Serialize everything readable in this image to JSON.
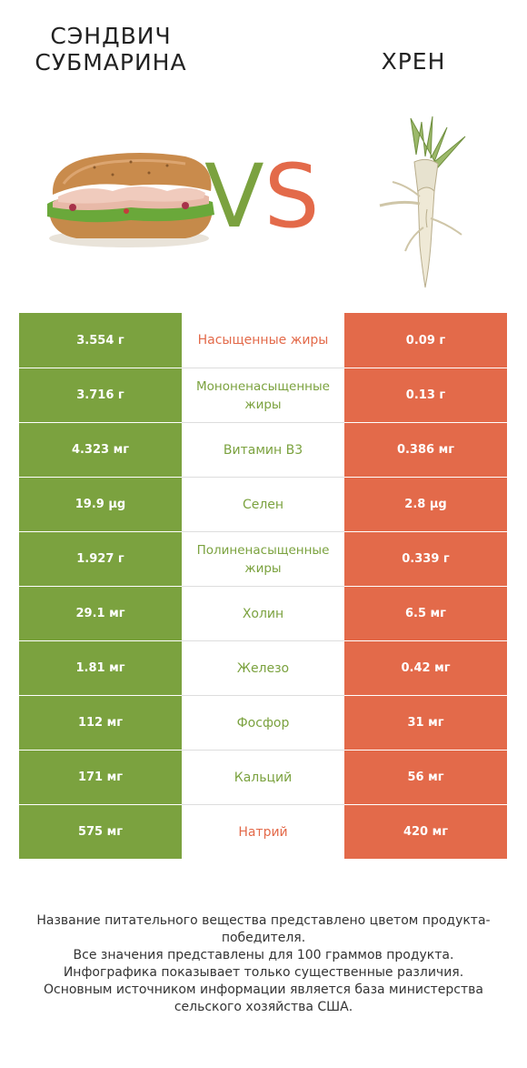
{
  "header": {
    "left_title": "СЭНДВИЧ\nСУБМАРИНА",
    "right_title": "ХРЕН",
    "vs_v": "V",
    "vs_s": "S"
  },
  "colors": {
    "left_winner": "#7ba23f",
    "right_winner": "#e36a4a"
  },
  "chart_data": {
    "type": "table",
    "columns": [
      "СЭНДВИЧ СУБМАРИНА",
      "",
      "ХРЕН"
    ],
    "rows": [
      {
        "nutrient": "Насыщенные жиры",
        "left": "3.554 г",
        "right": "0.09 г",
        "winner": "right"
      },
      {
        "nutrient": "Мононенасыщенные жиры",
        "left": "3.716 г",
        "right": "0.13 г",
        "winner": "left"
      },
      {
        "nutrient": "Витамин B3",
        "left": "4.323 мг",
        "right": "0.386 мг",
        "winner": "left"
      },
      {
        "nutrient": "Селен",
        "left": "19.9 µg",
        "right": "2.8 µg",
        "winner": "left"
      },
      {
        "nutrient": "Полиненасыщенные жиры",
        "left": "1.927 г",
        "right": "0.339 г",
        "winner": "left"
      },
      {
        "nutrient": "Холин",
        "left": "29.1 мг",
        "right": "6.5 мг",
        "winner": "left"
      },
      {
        "nutrient": "Железо",
        "left": "1.81 мг",
        "right": "0.42 мг",
        "winner": "left"
      },
      {
        "nutrient": "Фосфор",
        "left": "112 мг",
        "right": "31 мг",
        "winner": "left"
      },
      {
        "nutrient": "Кальций",
        "left": "171 мг",
        "right": "56 мг",
        "winner": "left"
      },
      {
        "nutrient": "Натрий",
        "left": "575 мг",
        "right": "420 мг",
        "winner": "right"
      }
    ]
  },
  "footer": {
    "line1": "Название питательного вещества представлено цветом продукта-победителя.",
    "line2": "Все значения представлены для 100 граммов продукта.",
    "line3": "Инфографика показывает только существенные различия.",
    "line4": "Основным источником информации является база министерства сельского хозяйства США."
  }
}
